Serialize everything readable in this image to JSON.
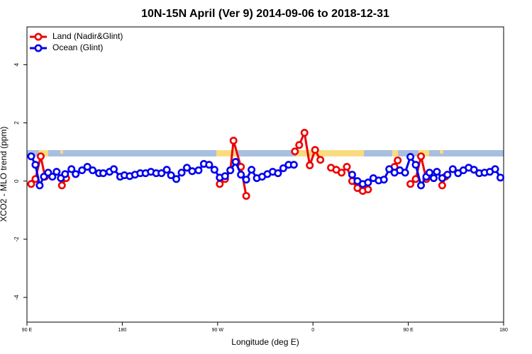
{
  "chart_data": {
    "type": "line",
    "title": "10N-15N April (Ver 9)   2014-09-06 to 2018-12-31",
    "x_label": "Longitude (deg E)",
    "y_label": "XCO2 - MLO trend (ppm)",
    "xlim": [
      90,
      540
    ],
    "xticks": [
      {
        "value": 90,
        "label": "90 E"
      },
      180,
      {
        "value": 270,
        "label": "90 W"
      },
      {
        "value": 360,
        "label": "0"
      },
      {
        "value": 450,
        "label": "90 E"
      },
      {
        "value": 540,
        "label": "180"
      }
    ],
    "ylim": [
      -4.85,
      5.3
    ],
    "yticks": [
      -4,
      -2,
      0,
      2,
      4
    ],
    "legend": "top-left",
    "series": [
      {
        "name": "Land (Nadir&Glint)",
        "color": "#ee0000",
        "x": [
          94,
          98,
          103,
          107,
          110,
          123,
          127,
          130,
          272,
          277,
          282,
          285,
          292,
          297,
          300,
          343,
          347,
          352,
          357,
          362,
          367,
          370,
          377,
          382,
          387,
          392,
          397,
          402,
          407,
          412,
          420,
          437,
          440,
          445,
          452,
          457,
          462,
          467,
          470,
          482,
          485
        ],
        "values": [
          -0.1,
          0.07,
          0.85,
          0.15,
          null,
          -0.15,
          0.1,
          null,
          -0.1,
          0.07,
          0.37,
          1.39,
          0.49,
          -0.51,
          null,
          1.02,
          1.24,
          1.66,
          0.54,
          1.07,
          0.73,
          null,
          0.46,
          0.39,
          0.29,
          0.49,
          0.0,
          -0.24,
          -0.34,
          -0.29,
          null,
          0.49,
          0.71,
          null,
          -0.1,
          0.07,
          0.85,
          0.07,
          null,
          -0.15,
          0.15
        ]
      },
      {
        "name": "Ocean (Glint)",
        "color": "#0000ee",
        "x": [
          94,
          98,
          102,
          106,
          110,
          114,
          118,
          122,
          126,
          132,
          136,
          142,
          147,
          152,
          158,
          162,
          168,
          172,
          178,
          182,
          187,
          192,
          197,
          202,
          207,
          212,
          217,
          222,
          226,
          231,
          236,
          241,
          246,
          252,
          257,
          262,
          267,
          272,
          277,
          282,
          287,
          292,
          297,
          302,
          307,
          312,
          317,
          322,
          327,
          332,
          337,
          342,
          370,
          397,
          402,
          407,
          412,
          417,
          422,
          427,
          432,
          437,
          442,
          447,
          452,
          457,
          462,
          467,
          470,
          474,
          477,
          482,
          487,
          492,
          497,
          502,
          507,
          512,
          517,
          522,
          527,
          532,
          537
        ],
        "values": [
          0.85,
          0.56,
          -0.15,
          0.15,
          0.29,
          0.15,
          0.32,
          0.1,
          0.24,
          0.41,
          0.24,
          0.37,
          0.49,
          0.37,
          0.27,
          0.27,
          0.32,
          0.41,
          0.15,
          0.2,
          0.17,
          0.22,
          0.27,
          0.27,
          0.32,
          0.27,
          0.27,
          0.39,
          0.2,
          0.07,
          0.29,
          0.46,
          0.34,
          0.37,
          0.59,
          0.56,
          0.39,
          0.12,
          0.17,
          0.37,
          0.66,
          0.22,
          0.05,
          0.39,
          0.1,
          0.15,
          0.24,
          0.32,
          0.27,
          0.44,
          0.56,
          0.56,
          null,
          0.22,
          0.0,
          -0.1,
          -0.05,
          0.1,
          0.02,
          0.05,
          0.41,
          0.29,
          0.37,
          0.29,
          0.83,
          0.56,
          -0.15,
          0.15,
          0.29,
          0.1,
          0.32,
          0.1,
          0.22,
          0.41,
          0.27,
          0.37,
          0.46,
          0.39,
          0.27,
          0.29,
          0.32,
          0.41,
          0.12
        ]
      }
    ]
  }
}
